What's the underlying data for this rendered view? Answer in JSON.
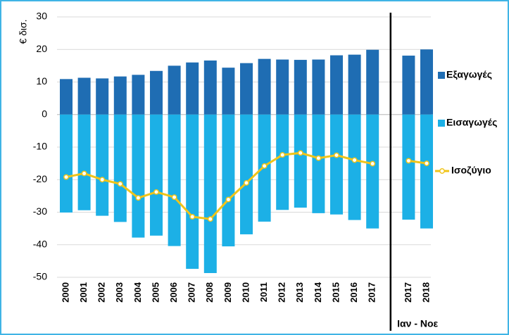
{
  "chart_data": {
    "type": "bar-line",
    "y_label": "€ δισ.",
    "annotation": "Ιαν - Νοε",
    "categories": [
      "2000",
      "2001",
      "2002",
      "2003",
      "2004",
      "2005",
      "2006",
      "2007",
      "2008",
      "2009",
      "2010",
      "2011",
      "2012",
      "2013",
      "2014",
      "2015",
      "2016",
      "2017",
      null,
      "2017",
      "2018"
    ],
    "series": [
      {
        "name": "Εξαγωγές",
        "kind": "bar",
        "color": "#1f6db3",
        "values": [
          10.9,
          11.3,
          11.1,
          11.7,
          12.2,
          13.4,
          15.0,
          16.0,
          16.6,
          14.4,
          15.8,
          17.1,
          16.9,
          16.8,
          16.9,
          18.2,
          18.4,
          19.9,
          null,
          18.1,
          20.0
        ]
      },
      {
        "name": "Εισαγωγές",
        "kind": "bar",
        "color": "#1cb0e6",
        "values": [
          -30.1,
          -29.4,
          -31.1,
          -33.0,
          -37.8,
          -37.2,
          -40.4,
          -47.4,
          -48.7,
          -40.5,
          -36.8,
          -32.9,
          -29.3,
          -28.6,
          -30.3,
          -30.7,
          -32.4,
          -35.0,
          null,
          -32.3,
          -35.0
        ]
      },
      {
        "name": "Ισοζύγιο",
        "kind": "line",
        "color": "#f0c419",
        "values": [
          -19.2,
          -18.1,
          -20.0,
          -21.3,
          -25.6,
          -23.8,
          -25.4,
          -31.4,
          -32.1,
          -26.1,
          -21.0,
          -15.8,
          -12.4,
          -11.8,
          -13.4,
          -12.5,
          -14.0,
          -15.1,
          null,
          -14.2,
          -15.0
        ]
      }
    ],
    "ylim": [
      -50,
      30
    ],
    "yticks": [
      -50,
      -40,
      -30,
      -20,
      -10,
      0,
      10,
      20,
      30
    ],
    "grid": true
  }
}
